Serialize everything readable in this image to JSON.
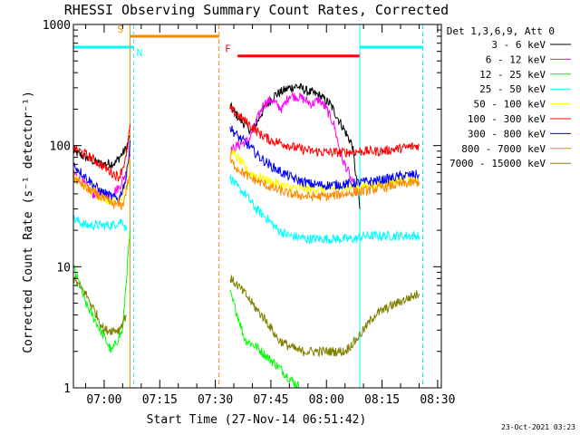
{
  "chart_data": {
    "type": "line",
    "title": "RHESSI Observing Summary Count Rates, Corrected",
    "xlabel": "Start Time (27-Nov-14 06:51:42)",
    "ylabel": "Corrected Count Rate (s⁻¹ detector⁻¹)",
    "x_scale": "time",
    "y_scale": "log",
    "xlim": [
      "06:51:42",
      "08:31:00"
    ],
    "ylim": [
      1,
      1000
    ],
    "x_ticks": [
      "07:00",
      "07:15",
      "07:30",
      "07:45",
      "08:00",
      "08:15",
      "08:30"
    ],
    "y_ticks": [
      {
        "value": 1,
        "label": "1"
      },
      {
        "value": 10,
        "label": "10"
      },
      {
        "value": 100,
        "label": "100"
      },
      {
        "value": 1000,
        "label": "1000"
      }
    ],
    "legend_header": "Det 1,3,6,9, Att 0",
    "legend_position": "right",
    "timestamp": "23-Oct-2021 03:23",
    "series": [
      {
        "name": "3 - 6 keV",
        "color": "#000000",
        "points": [
          [
            "06:51:42",
            90
          ],
          [
            "06:55",
            80
          ],
          [
            "06:59",
            70
          ],
          [
            "07:03",
            72
          ],
          [
            "07:06",
            95
          ],
          [
            "07:07",
            120
          ],
          [
            "07:34",
            210
          ],
          [
            "07:37",
            160
          ],
          [
            "07:40",
            130
          ],
          [
            "07:43",
            200
          ],
          [
            "07:46",
            260
          ],
          [
            "07:50",
            300
          ],
          [
            "07:52",
            310
          ],
          [
            "07:55",
            280
          ],
          [
            "07:58",
            260
          ],
          [
            "08:01",
            220
          ],
          [
            "08:04",
            150
          ],
          [
            "08:07",
            100
          ],
          [
            "08:09",
            30
          ]
        ]
      },
      {
        "name": "6 - 12 keV",
        "color": "#ff00ff",
        "points": [
          [
            "06:51:42",
            60
          ],
          [
            "06:57",
            40
          ],
          [
            "07:01",
            38
          ],
          [
            "07:04",
            45
          ],
          [
            "07:06",
            60
          ],
          [
            "07:07",
            85
          ],
          [
            "07:34",
            90
          ],
          [
            "07:36",
            100
          ],
          [
            "07:39",
            110
          ],
          [
            "07:43",
            220
          ],
          [
            "07:45",
            240
          ],
          [
            "07:48",
            200
          ],
          [
            "07:50",
            260
          ],
          [
            "07:53",
            250
          ],
          [
            "07:56",
            220
          ],
          [
            "07:58",
            240
          ],
          [
            "08:00",
            200
          ],
          [
            "08:02",
            150
          ],
          [
            "08:04",
            80
          ],
          [
            "08:06",
            60
          ],
          [
            "08:08",
            40
          ]
        ]
      },
      {
        "name": "12 - 25 keV",
        "color": "#00ff00",
        "points": [
          [
            "06:51:42",
            10
          ],
          [
            "06:55",
            5
          ],
          [
            "06:59",
            3
          ],
          [
            "07:02",
            2
          ],
          [
            "07:05",
            3
          ],
          [
            "07:06",
            8
          ],
          [
            "07:07",
            20
          ],
          [
            "07:34",
            6
          ],
          [
            "07:36",
            4
          ],
          [
            "07:38",
            2.5
          ],
          [
            "07:41",
            2.2
          ],
          [
            "07:44",
            1.8
          ],
          [
            "07:47",
            1.5
          ],
          [
            "07:50",
            1.2
          ],
          [
            "07:53",
            1
          ]
        ]
      },
      {
        "name": "25 - 50 keV",
        "color": "#00ffff",
        "points": [
          [
            "06:51:42",
            25
          ],
          [
            "06:55",
            22
          ],
          [
            "06:59",
            22
          ],
          [
            "07:02",
            22
          ],
          [
            "07:05",
            24
          ],
          [
            "07:06",
            20
          ],
          [
            "07:34",
            55
          ],
          [
            "07:36",
            45
          ],
          [
            "07:38",
            40
          ],
          [
            "07:41",
            30
          ],
          [
            "07:44",
            25
          ],
          [
            "07:47",
            20
          ],
          [
            "07:50",
            18
          ],
          [
            "07:55",
            17
          ],
          [
            "08:00",
            17
          ],
          [
            "08:05",
            17
          ],
          [
            "08:08",
            17
          ],
          [
            "08:10",
            18
          ],
          [
            "08:15",
            18
          ],
          [
            "08:20",
            18
          ],
          [
            "08:25",
            18
          ]
        ]
      },
      {
        "name": "50 - 100 keV",
        "color": "#ffff00",
        "points": [
          [
            "06:51:42",
            55
          ],
          [
            "06:55",
            45
          ],
          [
            "06:59",
            38
          ],
          [
            "07:02",
            35
          ],
          [
            "07:05",
            38
          ],
          [
            "07:07",
            80
          ],
          [
            "07:34",
            90
          ],
          [
            "07:36",
            80
          ],
          [
            "07:39",
            60
          ],
          [
            "07:42",
            55
          ],
          [
            "07:45",
            50
          ],
          [
            "07:50",
            45
          ],
          [
            "07:55",
            44
          ],
          [
            "08:00",
            44
          ],
          [
            "08:05",
            45
          ],
          [
            "08:10",
            46
          ],
          [
            "08:15",
            48
          ],
          [
            "08:20",
            52
          ],
          [
            "08:25",
            50
          ]
        ]
      },
      {
        "name": "100 - 300 keV",
        "color": "#ff0000",
        "points": [
          [
            "06:51:42",
            95
          ],
          [
            "06:55",
            85
          ],
          [
            "06:59",
            70
          ],
          [
            "07:02",
            60
          ],
          [
            "07:04",
            55
          ],
          [
            "07:06",
            80
          ],
          [
            "07:07",
            150
          ],
          [
            "07:34",
            200
          ],
          [
            "07:36",
            180
          ],
          [
            "07:39",
            150
          ],
          [
            "07:42",
            125
          ],
          [
            "07:45",
            110
          ],
          [
            "07:48",
            105
          ],
          [
            "07:52",
            95
          ],
          [
            "07:56",
            90
          ],
          [
            "08:00",
            88
          ],
          [
            "08:05",
            88
          ],
          [
            "08:10",
            90
          ],
          [
            "08:15",
            90
          ],
          [
            "08:20",
            95
          ],
          [
            "08:25",
            100
          ]
        ]
      },
      {
        "name": "300 - 800 keV",
        "color": "#0000ff",
        "points": [
          [
            "06:51:42",
            70
          ],
          [
            "06:55",
            55
          ],
          [
            "06:59",
            42
          ],
          [
            "07:02",
            38
          ],
          [
            "07:04",
            36
          ],
          [
            "07:06",
            55
          ],
          [
            "07:07",
            110
          ],
          [
            "07:34",
            140
          ],
          [
            "07:36",
            120
          ],
          [
            "07:39",
            100
          ],
          [
            "07:42",
            80
          ],
          [
            "07:45",
            68
          ],
          [
            "07:48",
            60
          ],
          [
            "07:52",
            52
          ],
          [
            "07:56",
            48
          ],
          [
            "08:00",
            47
          ],
          [
            "08:05",
            48
          ],
          [
            "08:10",
            50
          ],
          [
            "08:15",
            52
          ],
          [
            "08:20",
            56
          ],
          [
            "08:25",
            58
          ]
        ]
      },
      {
        "name": "800 - 7000 keV",
        "color": "#ff8800",
        "points": [
          [
            "06:51:42",
            55
          ],
          [
            "06:55",
            45
          ],
          [
            "06:59",
            38
          ],
          [
            "07:02",
            33
          ],
          [
            "07:05",
            32
          ],
          [
            "07:07",
            60
          ],
          [
            "07:34",
            75
          ],
          [
            "07:36",
            65
          ],
          [
            "07:39",
            55
          ],
          [
            "07:42",
            50
          ],
          [
            "07:45",
            45
          ],
          [
            "07:50",
            40
          ],
          [
            "07:55",
            38
          ],
          [
            "08:00",
            38
          ],
          [
            "08:05",
            40
          ],
          [
            "08:10",
            42
          ],
          [
            "08:15",
            45
          ],
          [
            "08:20",
            48
          ],
          [
            "08:25",
            50
          ]
        ]
      },
      {
        "name": "7000 - 15000 keV",
        "color": "#808000",
        "points": [
          [
            "06:51:42",
            8
          ],
          [
            "06:55",
            6
          ],
          [
            "06:58",
            4
          ],
          [
            "07:00",
            3
          ],
          [
            "07:02",
            3
          ],
          [
            "07:04",
            3
          ],
          [
            "07:05",
            3.5
          ],
          [
            "07:06",
            4
          ],
          [
            "07:34",
            8
          ],
          [
            "07:36",
            7
          ],
          [
            "07:38",
            6
          ],
          [
            "07:41",
            4.5
          ],
          [
            "07:44",
            3.5
          ],
          [
            "07:47",
            2.5
          ],
          [
            "07:50",
            2.2
          ],
          [
            "07:53",
            2
          ],
          [
            "07:56",
            2
          ],
          [
            "07:59",
            2
          ],
          [
            "08:02",
            2
          ],
          [
            "08:05",
            2
          ],
          [
            "08:08",
            2.5
          ],
          [
            "08:10",
            3
          ],
          [
            "08:13",
            4
          ],
          [
            "08:16",
            4.5
          ],
          [
            "08:19",
            5
          ],
          [
            "08:22",
            5.5
          ],
          [
            "08:25",
            6
          ]
        ]
      }
    ],
    "annotations": [
      {
        "label": "S",
        "kind": "SAA",
        "color": "#ff8800",
        "x_start": "07:07",
        "x_end": "07:31",
        "y": 800
      },
      {
        "label": "N",
        "kind": "Night",
        "color": "#00ffff",
        "x_start": "06:51:42",
        "x_end": "07:08",
        "y": 650
      },
      {
        "label": "",
        "kind": "Night",
        "color": "#00ffff",
        "x_start": "08:09",
        "x_end": "08:26",
        "y": 650
      },
      {
        "label": "F",
        "kind": "Flare",
        "color": "#ff0000",
        "x_start": "07:36",
        "x_end": "08:09",
        "y": 550
      }
    ],
    "vertical_markers": [
      {
        "x": "07:07",
        "color": "#ff8800",
        "dashed": false
      },
      {
        "x": "07:08",
        "color": "#00ffff",
        "dashed": true
      },
      {
        "x": "07:31",
        "color": "#ff8800",
        "dashed": true
      },
      {
        "x": "08:09",
        "color": "#00ffff",
        "dashed": false
      },
      {
        "x": "08:26",
        "color": "#00ffff",
        "dashed": true
      }
    ]
  }
}
